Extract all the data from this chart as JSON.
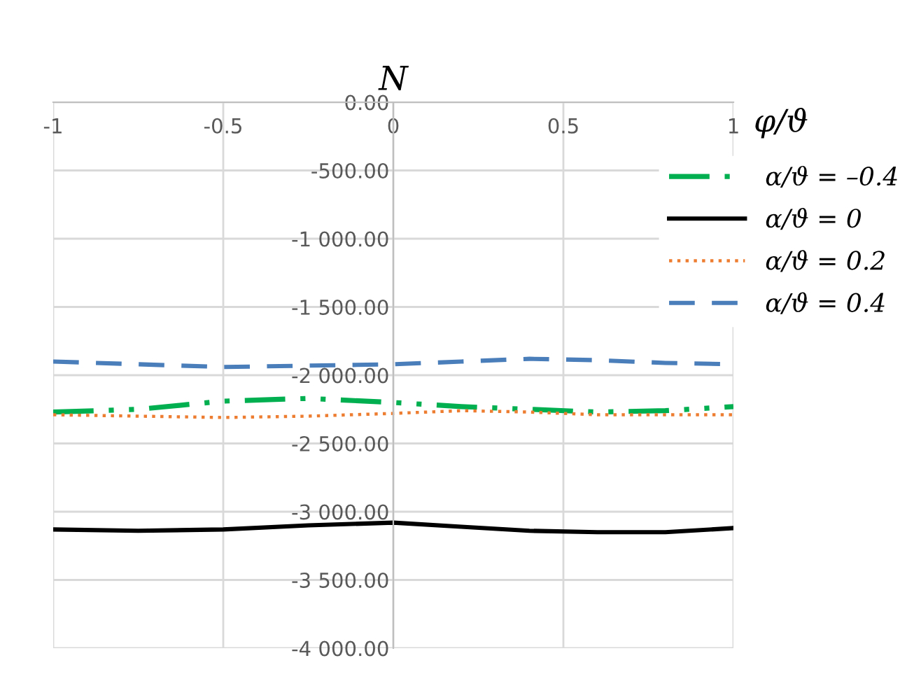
{
  "chart_data": {
    "type": "line",
    "xlabel": "φ/ϑ",
    "ylabel": "N",
    "x": [
      -1,
      -0.75,
      -0.5,
      -0.25,
      0,
      0.2,
      0.4,
      0.6,
      0.8,
      1
    ],
    "series": [
      {
        "name": "α/ϑ = –0.4",
        "color": "#00b050",
        "line_style": "dashdot",
        "values": [
          -2270,
          -2250,
          -2190,
          -2170,
          -2200,
          -2230,
          -2250,
          -2270,
          -2260,
          -2230
        ]
      },
      {
        "name": "α/ϑ = 0",
        "color": "#000000",
        "line_style": "solid",
        "values": [
          -3130,
          -3140,
          -3130,
          -3100,
          -3080,
          -3110,
          -3140,
          -3150,
          -3150,
          -3120
        ]
      },
      {
        "name": "α/ϑ = 0.2",
        "color": "#ed7d31",
        "line_style": "dotted",
        "values": [
          -2290,
          -2300,
          -2310,
          -2300,
          -2280,
          -2260,
          -2270,
          -2290,
          -2290,
          -2290
        ]
      },
      {
        "name": "α/ϑ = 0.4",
        "color": "#4a7ebb",
        "line_style": "dashed",
        "values": [
          -1900,
          -1920,
          -1940,
          -1930,
          -1920,
          -1900,
          -1880,
          -1890,
          -1910,
          -1920
        ]
      }
    ],
    "xlim": [
      -1,
      1
    ],
    "ylim": [
      -4000,
      0
    ],
    "xticks": [
      -1,
      -0.5,
      0,
      0.5,
      1
    ],
    "yticks": [
      {
        "value": 0,
        "label": "0.00"
      },
      {
        "value": -500,
        "label": "-500.00"
      },
      {
        "value": -1000,
        "label": "-1 000.00"
      },
      {
        "value": -1500,
        "label": "-1 500.00"
      },
      {
        "value": -2000,
        "label": "-2 000.00"
      },
      {
        "value": -2500,
        "label": "-2 500.00"
      },
      {
        "value": -3000,
        "label": "-3 000.00"
      },
      {
        "value": -3500,
        "label": "-3 500.00"
      },
      {
        "value": -4000,
        "label": "-4 000.00"
      }
    ],
    "grid": true,
    "legend": "right"
  }
}
